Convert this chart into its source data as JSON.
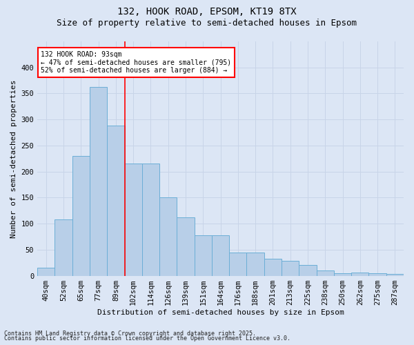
{
  "title1": "132, HOOK ROAD, EPSOM, KT19 8TX",
  "title2": "Size of property relative to semi-detached houses in Epsom",
  "xlabel": "Distribution of semi-detached houses by size in Epsom",
  "ylabel": "Number of semi-detached properties",
  "categories": [
    "40sqm",
    "52sqm",
    "65sqm",
    "77sqm",
    "89sqm",
    "102sqm",
    "114sqm",
    "126sqm",
    "139sqm",
    "151sqm",
    "164sqm",
    "176sqm",
    "188sqm",
    "201sqm",
    "213sqm",
    "225sqm",
    "238sqm",
    "250sqm",
    "262sqm",
    "275sqm",
    "287sqm"
  ],
  "values": [
    15,
    108,
    230,
    362,
    288,
    215,
    215,
    150,
    112,
    78,
    78,
    45,
    45,
    33,
    28,
    20,
    10,
    5,
    6,
    5,
    3
  ],
  "bar_color": "#b8cfe8",
  "bar_edge_color": "#6baed6",
  "bar_width": 1.0,
  "vline_x": 4.5,
  "vline_color": "red",
  "annotation_text": "132 HOOK ROAD: 93sqm\n← 47% of semi-detached houses are smaller (795)\n52% of semi-detached houses are larger (884) →",
  "annotation_box_color": "white",
  "annotation_box_edge": "red",
  "ylim": [
    0,
    450
  ],
  "yticks": [
    0,
    50,
    100,
    150,
    200,
    250,
    300,
    350,
    400
  ],
  "grid_color": "#c8d4e8",
  "background_color": "#dce6f5",
  "footnote1": "Contains HM Land Registry data © Crown copyright and database right 2025.",
  "footnote2": "Contains public sector information licensed under the Open Government Licence v3.0.",
  "title_fontsize": 10,
  "subtitle_fontsize": 9,
  "axis_label_fontsize": 8,
  "tick_fontsize": 7.5,
  "annotation_fontsize": 7,
  "footnote_fontsize": 6
}
